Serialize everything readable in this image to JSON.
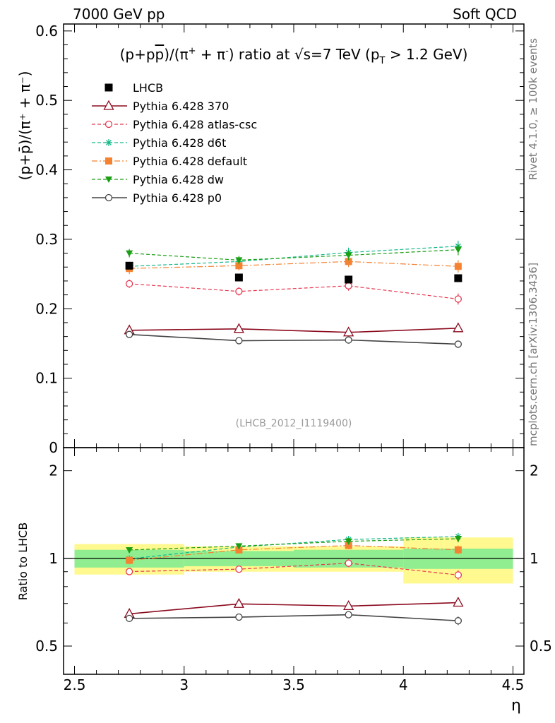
{
  "header": {
    "left": "7000 GeV pp",
    "right": "Soft QCD"
  },
  "side": {
    "rivet": "Rivet 4.1.0, ≥ 100k events",
    "mcplots": "mcplots.cern.ch [arXiv:1306.3436]"
  },
  "chart_data": {
    "type": "scatter",
    "title": "(p+p̄)/(π⁺ + π⁻) ratio at √s=7 TeV (p_T > 1.2 GeV)",
    "title_parts": {
      "a": "(p+p",
      "pbar": "p",
      "b": ")/(π",
      "plus": "+",
      "c": " + π",
      "minus": "-",
      "d": ") ratio at √s=7 TeV (p",
      "sub": "T",
      "e": " > 1.2 GeV)"
    },
    "analysis_id": "(LHCB_2012_I1119400)",
    "ylabel": "(p+p̄)/(π⁺ + π⁻)",
    "ratio_ylabel": "Ratio to LHCB",
    "xlabel": "η",
    "xlim": [
      2.45,
      4.55
    ],
    "ylim": [
      0,
      0.61
    ],
    "ratio_ylim": [
      0.4,
      2.4
    ],
    "x_ticks": [
      "2.5",
      "3",
      "3.5",
      "4",
      "4.5"
    ],
    "y_ticks": [
      "0",
      "0.1",
      "0.2",
      "0.3",
      "0.4",
      "0.5",
      "0.6"
    ],
    "ratio_ticks": [
      "0.5",
      "1",
      "2"
    ],
    "x": [
      2.75,
      3.25,
      3.75,
      4.25
    ],
    "bin_edges": [
      2.5,
      3.0,
      3.5,
      4.0,
      4.5
    ],
    "data": {
      "name": "LHCB",
      "values": [
        0.262,
        0.245,
        0.242,
        0.244
      ],
      "band_inner": [
        0.07,
        0.06,
        0.07,
        0.08
      ],
      "band_outer": [
        0.12,
        0.1,
        0.1,
        0.18
      ]
    },
    "series": [
      {
        "name": "Pythia 6.428 370",
        "color": "#8b0a1e",
        "marker": "triangle-open",
        "dash": "",
        "values": [
          0.169,
          0.171,
          0.166,
          0.172
        ],
        "errors": [
          0.004,
          0.004,
          0.004,
          0.005
        ]
      },
      {
        "name": "Pythia 6.428 atlas-csc",
        "color": "#e8364f",
        "marker": "circle-open",
        "dash": "5,3",
        "values": [
          0.236,
          0.225,
          0.233,
          0.214
        ],
        "errors": [
          0.006,
          0.006,
          0.007,
          0.008
        ]
      },
      {
        "name": "Pythia 6.428 d6t",
        "color": "#16b98a",
        "marker": "star",
        "dash": "5,3",
        "values": [
          0.261,
          0.268,
          0.281,
          0.29
        ],
        "errors": [
          0.006,
          0.006,
          0.007,
          0.008
        ]
      },
      {
        "name": "Pythia 6.428 default",
        "color": "#f58231",
        "marker": "square",
        "dash": "8,3,2,3",
        "values": [
          0.258,
          0.262,
          0.268,
          0.261
        ],
        "errors": [
          0.008,
          0.007,
          0.008,
          0.009
        ]
      },
      {
        "name": "Pythia 6.428 dw",
        "color": "#1a9e14",
        "marker": "triangle-down",
        "dash": "5,3",
        "values": [
          0.28,
          0.27,
          0.277,
          0.285
        ],
        "errors": [
          0.006,
          0.006,
          0.007,
          0.008
        ]
      },
      {
        "name": "Pythia 6.428 p0",
        "color": "#444444",
        "marker": "circle-open",
        "dash": "",
        "values": [
          0.163,
          0.154,
          0.155,
          0.149
        ],
        "errors": [
          0.004,
          0.004,
          0.004,
          0.005
        ]
      }
    ],
    "colors": {
      "band_inner": "#90ee90",
      "band_outer": "#fff98f",
      "data_marker": "#000000"
    }
  }
}
